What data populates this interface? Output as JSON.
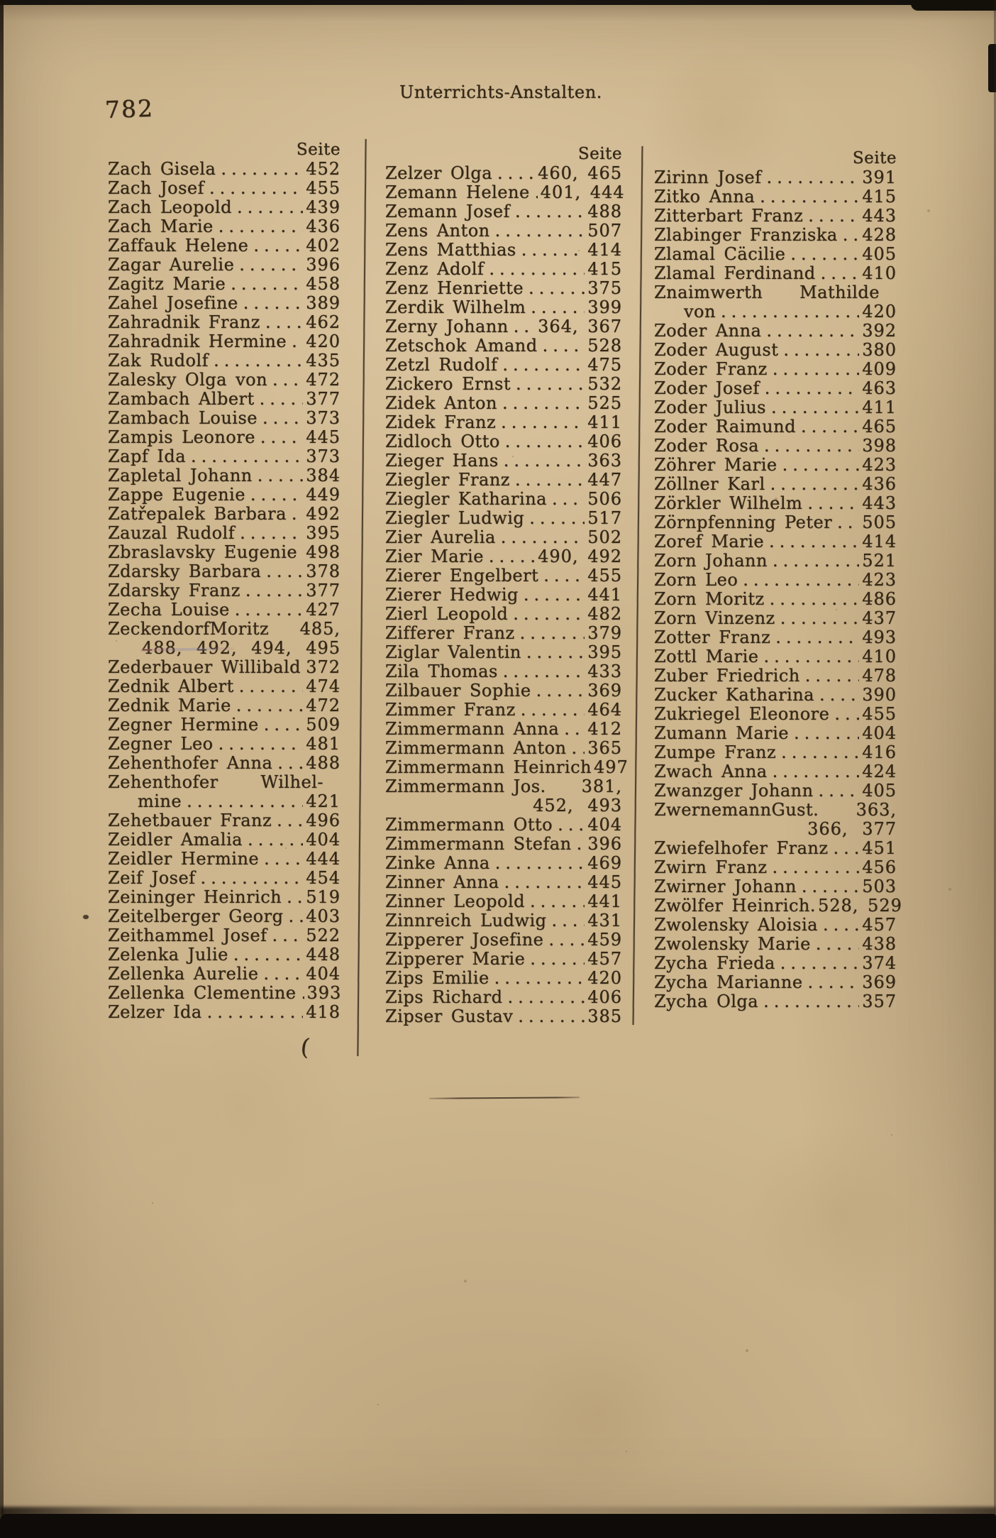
{
  "page": {
    "number": "782",
    "header": "Unterrichts-Anstalten.",
    "seite_label": "Seite"
  },
  "artifacts": {
    "stray_paren": "("
  },
  "columns": [
    {
      "lines": [
        {
          "n": "Zach Gisela",
          "p": "452"
        },
        {
          "n": "Zach Josef",
          "p": "455"
        },
        {
          "n": "Zach Leopold",
          "p": "439"
        },
        {
          "n": "Zach Marie",
          "p": "436"
        },
        {
          "n": "Zaffauk Helene",
          "p": "402"
        },
        {
          "n": "Zagar Aurelie",
          "p": "396"
        },
        {
          "n": "Zagitz Marie",
          "p": "458"
        },
        {
          "n": "Zahel Josefine",
          "p": "389"
        },
        {
          "n": "Zahradnik Franz",
          "p": "462"
        },
        {
          "n": "Zahradnik Hermine",
          "p": "420"
        },
        {
          "n": "Zak Rudolf",
          "p": "435"
        },
        {
          "n": "Zalesky Olga von",
          "p": "472"
        },
        {
          "n": "Zambach Albert",
          "p": "377"
        },
        {
          "n": "Zambach Louise",
          "p": "373"
        },
        {
          "n": "Zampis Leonore",
          "p": "445"
        },
        {
          "n": "Zapf Ida",
          "p": "373"
        },
        {
          "n": "Zapletal Johann",
          "p": "384"
        },
        {
          "n": "Zappe Eugenie",
          "p": "449"
        },
        {
          "n": "Zatřepalek Barbara",
          "p": "492"
        },
        {
          "n": "Zauzal Rudolf",
          "p": "395"
        },
        {
          "n": "Zbraslavsky Eugenie",
          "p": "498",
          "t": "n"
        },
        {
          "n": "Zdarsky Barbara",
          "p": "378"
        },
        {
          "n": "Zdarsky Franz",
          "p": "377"
        },
        {
          "n": "Zecha Louise",
          "p": "427"
        },
        {
          "n": "ZeckendorfMoritz",
          "p": "485,",
          "t": "n"
        },
        {
          "p": "488, 492, 494, 495",
          "t": "c"
        },
        {
          "n": "Zederbauer Willibald",
          "p": "372",
          "t": "n"
        },
        {
          "n": "Zednik Albert",
          "p": "474"
        },
        {
          "n": "Zednik Marie",
          "p": "472"
        },
        {
          "n": "Zegner Hermine",
          "p": "509"
        },
        {
          "n": "Zegner Leo",
          "p": "481"
        },
        {
          "n": "Zehenthofer Anna",
          "p": "488"
        },
        {
          "n": "Zehenthofer Wilhel-",
          "t": "w"
        },
        {
          "n": "mine",
          "p": "421",
          "t": "i"
        },
        {
          "n": "Zehetbauer Franz",
          "p": "496"
        },
        {
          "n": "Zeidler Amalia",
          "p": "404"
        },
        {
          "n": "Zeidler Hermine",
          "p": "444"
        },
        {
          "n": "Zeif Josef",
          "p": "454"
        },
        {
          "n": "Zeininger Heinrich",
          "p": "519"
        },
        {
          "n": "Zeitelberger Georg",
          "p": "403"
        },
        {
          "n": "Zeithammel Josef",
          "p": "522"
        },
        {
          "n": "Zelenka Julie",
          "p": "448"
        },
        {
          "n": "Zellenka Aurelie",
          "p": "404"
        },
        {
          "n": "Zellenka Clementine",
          "p": "393"
        },
        {
          "n": "Zelzer Ida",
          "p": "418"
        }
      ]
    },
    {
      "lines": [
        {
          "n": "Zelzer Olga",
          "p": "460, 465"
        },
        {
          "n": "Zemann Helene",
          "p": "401, 444"
        },
        {
          "n": "Zemann Josef",
          "p": "488"
        },
        {
          "n": "Zens Anton",
          "p": "507"
        },
        {
          "n": "Zens Matthias",
          "p": "414"
        },
        {
          "n": "Zenz Adolf",
          "p": "415"
        },
        {
          "n": "Zenz Henriette",
          "p": "375"
        },
        {
          "n": "Zerdik Wilhelm",
          "p": "399"
        },
        {
          "n": "Zerny Johann",
          "p": "364, 367"
        },
        {
          "n": "Zetschok Amand",
          "p": "528"
        },
        {
          "n": "Zetzl Rudolf",
          "p": "475"
        },
        {
          "n": "Zickero Ernst",
          "p": "532"
        },
        {
          "n": "Zidek Anton",
          "p": "525"
        },
        {
          "n": "Zidek Franz",
          "p": "411"
        },
        {
          "n": "Zidloch Otto",
          "p": "406"
        },
        {
          "n": "Zieger Hans",
          "p": "363"
        },
        {
          "n": "Ziegler Franz",
          "p": "447"
        },
        {
          "n": "Ziegler Katharina",
          "p": "506"
        },
        {
          "n": "Ziegler Ludwig",
          "p": "517"
        },
        {
          "n": "Zier Aurelia",
          "p": "502"
        },
        {
          "n": "Zier Marie",
          "p": "490, 492"
        },
        {
          "n": "Zierer Engelbert",
          "p": "455"
        },
        {
          "n": "Zierer Hedwig",
          "p": "441"
        },
        {
          "n": "Zierl Leopold",
          "p": "482"
        },
        {
          "n": "Zifferer Franz",
          "p": "379"
        },
        {
          "n": "Ziglar Valentin",
          "p": "395"
        },
        {
          "n": "Zila Thomas",
          "p": "433"
        },
        {
          "n": "Zilbauer Sophie",
          "p": "369"
        },
        {
          "n": "Zimmer Franz",
          "p": "464"
        },
        {
          "n": "Zimmermann Anna",
          "p": "412"
        },
        {
          "n": "Zimmermann Anton",
          "p": "365"
        },
        {
          "n": "Zimmermann Heinrich",
          "p": "497",
          "t": "n"
        },
        {
          "n": "Zimmermann Jos.",
          "p": "381,",
          "t": "n"
        },
        {
          "p": "452, 493",
          "t": "c"
        },
        {
          "n": "Zimmermann Otto",
          "p": "404"
        },
        {
          "n": "Zimmermann Stefan",
          "p": "396"
        },
        {
          "n": "Zinke Anna",
          "p": "469"
        },
        {
          "n": "Zinner Anna",
          "p": "445"
        },
        {
          "n": "Zinner Leopold",
          "p": "441"
        },
        {
          "n": "Zinnreich Ludwig",
          "p": "431"
        },
        {
          "n": "Zipperer Josefine",
          "p": "459"
        },
        {
          "n": "Zipperer Marie",
          "p": "457"
        },
        {
          "n": "Zips Emilie",
          "p": "420"
        },
        {
          "n": "Zips Richard",
          "p": "406"
        },
        {
          "n": "Zipser Gustav",
          "p": "385"
        }
      ]
    },
    {
      "lines": [
        {
          "n": "Zirinn Josef",
          "p": "391"
        },
        {
          "n": "Zitko Anna",
          "p": "415"
        },
        {
          "n": "Zitterbart Franz",
          "p": "443"
        },
        {
          "n": "Zlabinger Franziska",
          "p": "428"
        },
        {
          "n": "Zlamal Cäcilie",
          "p": "405"
        },
        {
          "n": "Zlamal Ferdinand",
          "p": "410"
        },
        {
          "n": "Znaimwerth Mathilde",
          "t": "w"
        },
        {
          "n": "von",
          "p": "420",
          "t": "i"
        },
        {
          "n": "Zoder Anna",
          "p": "392"
        },
        {
          "n": "Zoder August",
          "p": "380"
        },
        {
          "n": "Zoder Franz",
          "p": "409"
        },
        {
          "n": "Zoder Josef",
          "p": "463"
        },
        {
          "n": "Zoder Julius",
          "p": "411"
        },
        {
          "n": "Zoder Raimund",
          "p": "465"
        },
        {
          "n": "Zoder Rosa",
          "p": "398"
        },
        {
          "n": "Zöhrer Marie",
          "p": "423"
        },
        {
          "n": "Zöllner Karl",
          "p": "436"
        },
        {
          "n": "Zörkler Wilhelm",
          "p": "443"
        },
        {
          "n": "Zörnpfenning Peter",
          "p": "505"
        },
        {
          "n": "Zoref Marie",
          "p": "414"
        },
        {
          "n": "Zorn Johann",
          "p": "521"
        },
        {
          "n": "Zorn Leo",
          "p": "423"
        },
        {
          "n": "Zorn Moritz",
          "p": "486"
        },
        {
          "n": "Zorn Vinzenz",
          "p": "437"
        },
        {
          "n": "Zotter Franz",
          "p": "493"
        },
        {
          "n": "Zottl Marie",
          "p": "410"
        },
        {
          "n": "Zuber Friedrich",
          "p": "478"
        },
        {
          "n": "Zucker Katharina",
          "p": "390"
        },
        {
          "n": "Zukriegel Eleonore",
          "p": "455"
        },
        {
          "n": "Zumann Marie",
          "p": "404"
        },
        {
          "n": "Zumpe Franz",
          "p": "416"
        },
        {
          "n": "Zwach Anna",
          "p": "424"
        },
        {
          "n": "Zwanzger Johann",
          "p": "405"
        },
        {
          "n": "ZwernemannGust.",
          "p": "363,",
          "t": "n"
        },
        {
          "p": "366, 377",
          "t": "c"
        },
        {
          "n": "Zwiefelhofer Franz",
          "p": "451"
        },
        {
          "n": "Zwirn Franz",
          "p": "456"
        },
        {
          "n": "Zwirner Johann",
          "p": "503"
        },
        {
          "n": "Zwölfer Heinrich.",
          "p": "528, 529",
          "t": "n"
        },
        {
          "n": "Zwolensky Aloisia",
          "p": "457"
        },
        {
          "n": "Zwolensky Marie",
          "p": "438"
        },
        {
          "n": "Zycha Frieda",
          "p": "374"
        },
        {
          "n": "Zycha Marianne",
          "p": "369"
        },
        {
          "n": "Zycha Olga",
          "p": "357"
        }
      ]
    }
  ]
}
